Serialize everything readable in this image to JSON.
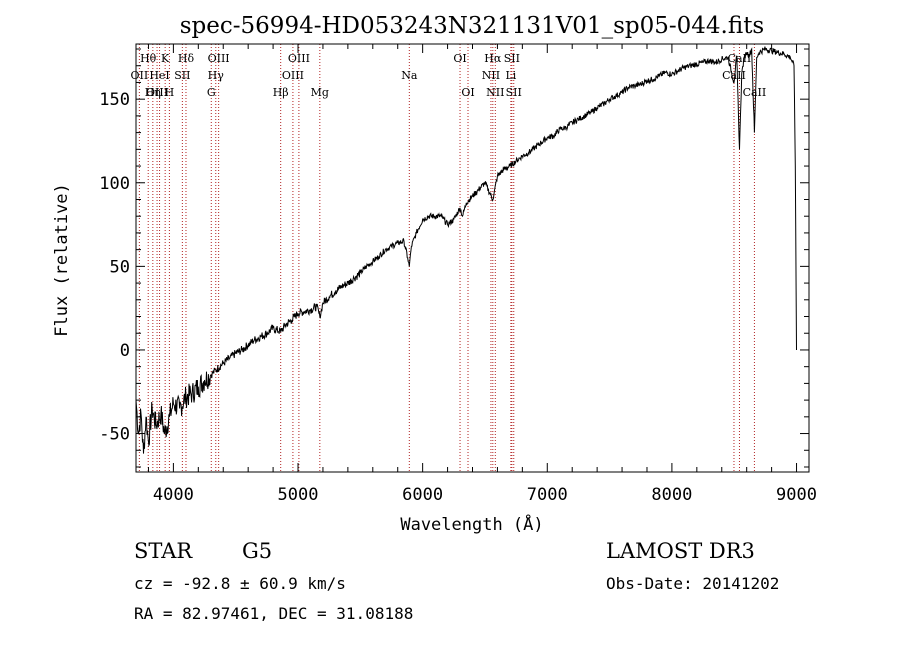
{
  "chart_data": {
    "type": "line",
    "title": "spec-56994-HD053243N321131V01_sp05-044.fits",
    "xlabel": "Wavelength (Å)",
    "ylabel": "Flux (relative)",
    "xlim": [
      3700,
      9100
    ],
    "ylim": [
      -73,
      183
    ],
    "x_ticks": [
      4000,
      5000,
      6000,
      7000,
      8000,
      9000
    ],
    "x_tick_labels": [
      "4000",
      "5000",
      "6000",
      "7000",
      "8000",
      "9000"
    ],
    "y_ticks": [
      -50,
      0,
      50,
      100,
      150
    ],
    "y_tick_labels": [
      "-50",
      "0",
      "50",
      "100",
      "150"
    ],
    "series": [
      {
        "name": "flux",
        "x": [
          3700,
          3720,
          3740,
          3760,
          3780,
          3800,
          3830,
          3860,
          3900,
          3930,
          3968,
          4000,
          4050,
          4101,
          4150,
          4200,
          4250,
          4300,
          4340,
          4400,
          4450,
          4500,
          4550,
          4600,
          4650,
          4700,
          4750,
          4800,
          4861,
          4900,
          4950,
          5000,
          5050,
          5100,
          5150,
          5175,
          5200,
          5250,
          5300,
          5350,
          5400,
          5450,
          5500,
          5550,
          5600,
          5650,
          5700,
          5750,
          5800,
          5850,
          5880,
          5893,
          5910,
          5950,
          6000,
          6050,
          6100,
          6150,
          6200,
          6250,
          6300,
          6320,
          6350,
          6400,
          6450,
          6500,
          6563,
          6600,
          6650,
          6700,
          6750,
          6800,
          6850,
          6900,
          6950,
          7000,
          7050,
          7100,
          7150,
          7200,
          7250,
          7300,
          7350,
          7400,
          7450,
          7500,
          7550,
          7600,
          7650,
          7700,
          7750,
          7800,
          7850,
          7900,
          7950,
          8000,
          8050,
          8100,
          8150,
          8200,
          8250,
          8300,
          8350,
          8400,
          8450,
          8498,
          8520,
          8542,
          8560,
          8580,
          8600,
          8620,
          8640,
          8662,
          8680,
          8700,
          8750,
          8800,
          8850,
          8900,
          8950,
          8980,
          8990,
          9000
        ],
        "y": [
          -30,
          -50,
          -38,
          -62,
          -40,
          -55,
          -35,
          -45,
          -38,
          -50,
          -40,
          -32,
          -35,
          -28,
          -26,
          -22,
          -18,
          -15,
          -12,
          -8,
          -5,
          -2,
          0,
          3,
          6,
          8,
          10,
          13,
          11,
          15,
          18,
          22,
          23,
          24,
          26,
          20,
          28,
          32,
          35,
          38,
          40,
          43,
          46,
          50,
          53,
          56,
          60,
          62,
          64,
          65,
          55,
          50,
          62,
          70,
          78,
          80,
          80,
          80,
          75,
          78,
          85,
          80,
          88,
          92,
          96,
          100,
          90,
          104,
          108,
          110,
          113,
          116,
          118,
          121,
          124,
          127,
          128,
          132,
          133,
          136,
          138,
          140,
          142,
          145,
          147,
          150,
          152,
          154,
          157,
          158,
          159,
          161,
          162,
          164,
          166,
          165,
          167,
          169,
          170,
          171,
          172,
          173,
          172,
          174,
          175,
          160,
          176,
          120,
          165,
          175,
          178,
          176,
          180,
          130,
          175,
          178,
          180,
          179,
          178,
          177,
          175,
          170,
          110,
          0
        ]
      }
    ],
    "line_labels": [
      {
        "label": "Hθ",
        "wave": 3798,
        "row": 1
      },
      {
        "label": "OII",
        "wave": 3727,
        "row": 2
      },
      {
        "label": "OIII",
        "wave": 3869,
        "row": 3
      },
      {
        "label": "K",
        "wave": 3934,
        "row": 1
      },
      {
        "label": "HeI",
        "wave": 3889,
        "row": 2
      },
      {
        "label": "Hη",
        "wave": 3835,
        "row": 3
      },
      {
        "label": "Hδ",
        "wave": 4101,
        "row": 1
      },
      {
        "label": "SII",
        "wave": 4072,
        "row": 2
      },
      {
        "label": "H",
        "wave": 3968,
        "row": 3
      },
      {
        "label": "OIII",
        "wave": 4363,
        "row": 1
      },
      {
        "label": "Hγ",
        "wave": 4340,
        "row": 2
      },
      {
        "label": "G",
        "wave": 4304,
        "row": 3
      },
      {
        "label": "OIII",
        "wave": 5007,
        "row": 1
      },
      {
        "label": "OIII",
        "wave": 4959,
        "row": 2
      },
      {
        "label": "Hβ",
        "wave": 4861,
        "row": 3
      },
      {
        "label": "Mg",
        "wave": 5175,
        "row": 3
      },
      {
        "label": "Na",
        "wave": 5893,
        "row": 2
      },
      {
        "label": "OI",
        "wave": 6300,
        "row": 1
      },
      {
        "label": "OI",
        "wave": 6364,
        "row": 3
      },
      {
        "label": "Hα",
        "wave": 6563,
        "row": 1
      },
      {
        "label": "NII",
        "wave": 6548,
        "row": 2
      },
      {
        "label": "NII",
        "wave": 6583,
        "row": 3
      },
      {
        "label": "SII",
        "wave": 6716,
        "row": 1
      },
      {
        "label": "Li",
        "wave": 6708,
        "row": 2
      },
      {
        "label": "SII",
        "wave": 6731,
        "row": 3
      },
      {
        "label": "CaII",
        "wave": 8542,
        "row": 1
      },
      {
        "label": "CaII",
        "wave": 8498,
        "row": 2
      },
      {
        "label": "CaII",
        "wave": 8662,
        "row": 3
      }
    ],
    "colors": {
      "spectrum": "#000000",
      "line_markers": "#b22222",
      "axes": "#000000"
    }
  },
  "info": {
    "object_class": "STAR",
    "subclass": "G5",
    "survey": "LAMOST DR3",
    "cz": "cz = -92.8 ± 60.9 km/s",
    "obs_date": "Obs-Date: 20141202",
    "coords": "RA =  82.97461, DEC =  31.08188"
  }
}
